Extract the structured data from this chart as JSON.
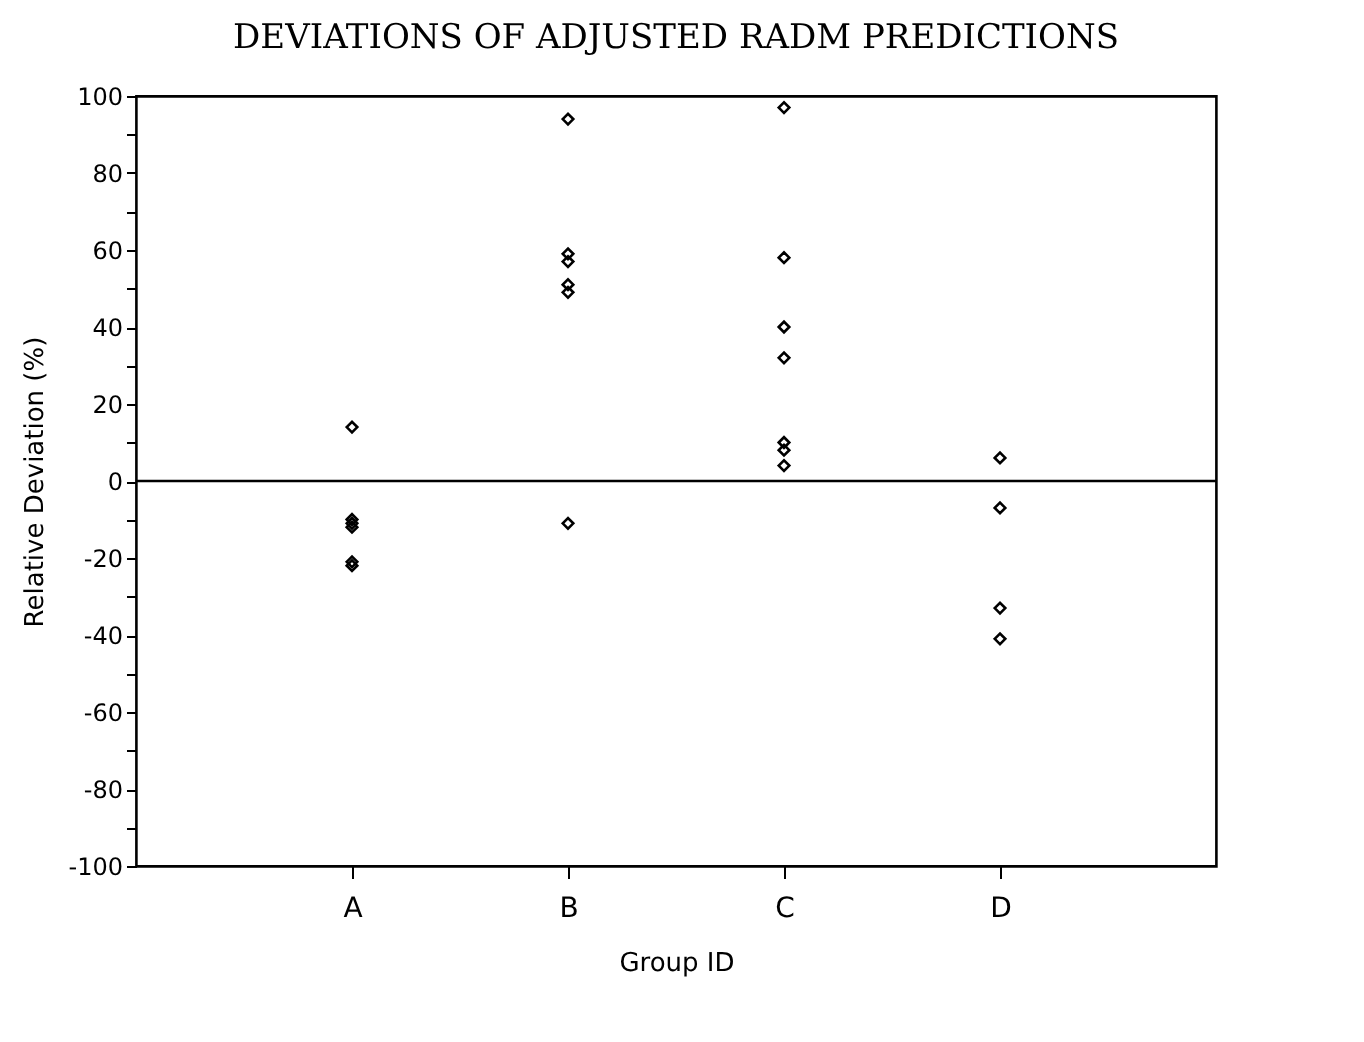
{
  "chart_data": {
    "type": "scatter",
    "title": "DEVIATIONS OF ADJUSTED RADM PREDICTIONS",
    "xlabel": "Group ID",
    "ylabel": "Relative Deviation (%)",
    "categories": [
      "A",
      "B",
      "C",
      "D"
    ],
    "series": [
      {
        "color": "#000000",
        "x": [
          "A",
          "A",
          "A",
          "A",
          "A",
          "A",
          "B",
          "B",
          "B",
          "B",
          "B",
          "B",
          "C",
          "C",
          "C",
          "C",
          "C",
          "C",
          "C",
          "D",
          "D",
          "D",
          "D"
        ],
        "values": [
          14,
          -10,
          -11,
          -12,
          -21,
          -22,
          94,
          59,
          57,
          51,
          49,
          -11,
          97,
          58,
          40,
          32,
          10,
          8,
          4,
          6,
          -7,
          -33,
          -41
        ]
      }
    ],
    "ylim": [
      -100,
      100
    ],
    "yticks": [
      -100,
      {
        "value": -90,
        "label": null
      },
      -80,
      {
        "value": -70,
        "label": null
      },
      -60,
      {
        "value": -50,
        "label": null
      },
      -40,
      {
        "value": -30,
        "label": null
      },
      -20,
      {
        "value": -10,
        "label": null
      },
      0,
      {
        "value": 10,
        "label": null
      },
      20,
      {
        "value": 30,
        "label": null
      },
      40,
      {
        "value": 50,
        "label": null
      },
      60,
      {
        "value": 70,
        "label": null
      },
      80,
      {
        "value": 90,
        "label": null
      },
      100
    ],
    "ref_lines": [
      {
        "axis": "y",
        "value": 0,
        "color": "#000000"
      }
    ],
    "marker": "diamond",
    "grid": false,
    "legend": false
  }
}
